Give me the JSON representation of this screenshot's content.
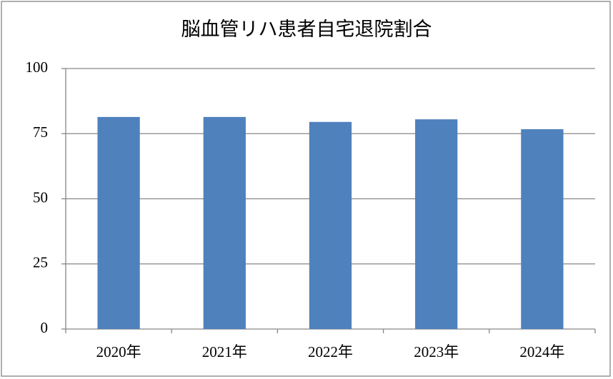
{
  "chart_data": {
    "type": "bar",
    "title": "脳血管リハ患者自宅退院割合",
    "categories": [
      "2020年",
      "2021年",
      "2022年",
      "2023年",
      "2024年"
    ],
    "values": [
      81.4,
      81.4,
      79.5,
      80.5,
      76.7
    ],
    "color": "#4f81bd",
    "ylim": [
      0,
      100
    ],
    "yticks": [
      0,
      25,
      50,
      75,
      100
    ],
    "grid": true
  }
}
